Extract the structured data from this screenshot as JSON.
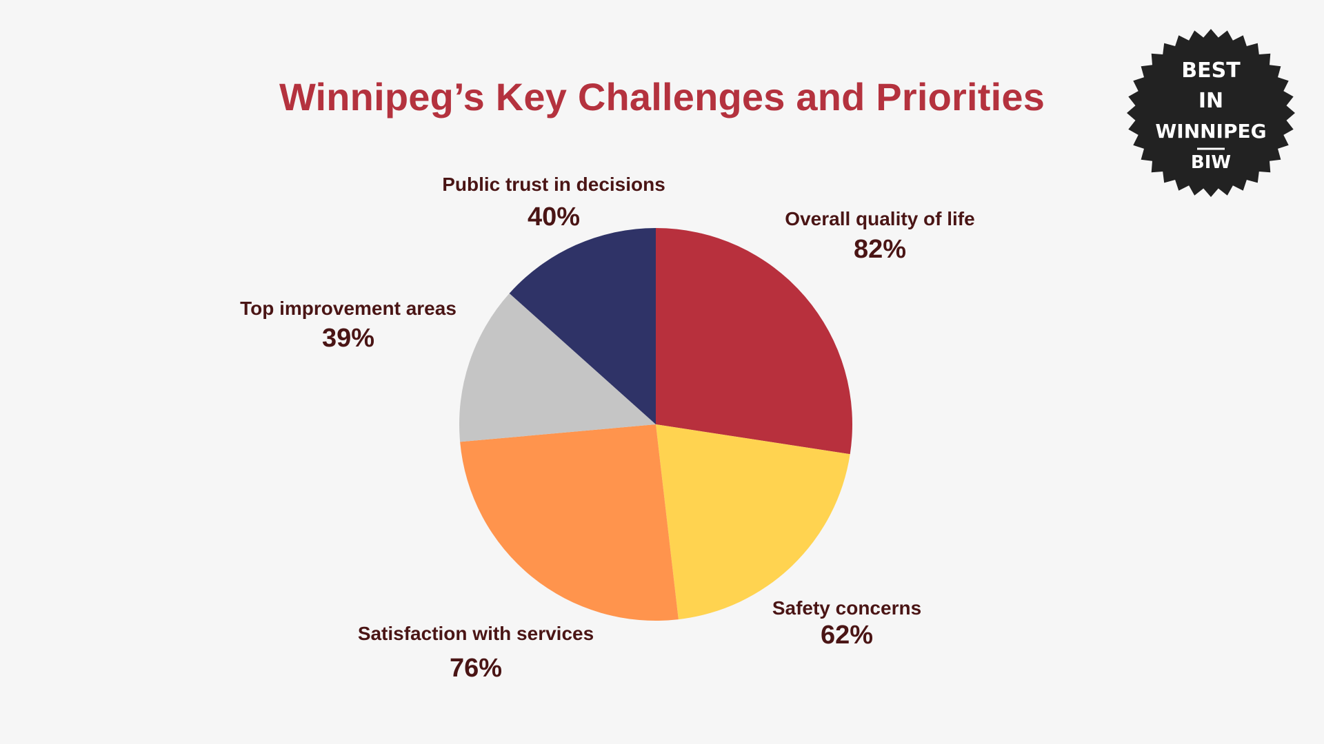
{
  "chart_data": {
    "type": "pie",
    "title": "Winnipeg’s Key Challenges and Priorities",
    "slices": [
      {
        "label": "Overall quality of life",
        "value": 82,
        "display": "82%",
        "color": "#b8303d"
      },
      {
        "label": "Safety concerns",
        "value": 62,
        "display": "62%",
        "color": "#ffd350"
      },
      {
        "label": "Satisfaction with services",
        "value": 76,
        "display": "76%",
        "color": "#ff944d"
      },
      {
        "label": "Top improvement areas",
        "value": 39,
        "display": "39%",
        "color": "#c5c5c5"
      },
      {
        "label": "Public trust in decisions",
        "value": 40,
        "display": "40%",
        "color": "#2f3367"
      }
    ]
  },
  "logo": {
    "line1": "BEST",
    "line2": "IN",
    "line3": "WINNIPEG",
    "abbr": "BIW",
    "color": "#222222"
  }
}
